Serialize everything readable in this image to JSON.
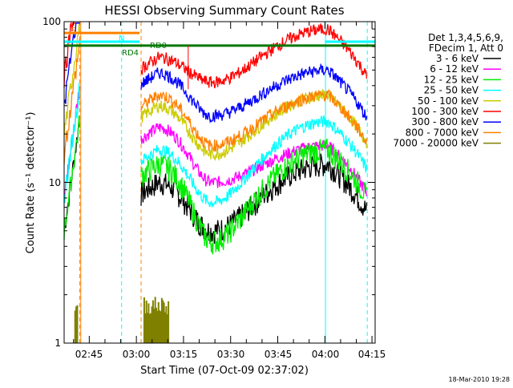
{
  "chart_data": {
    "type": "line",
    "title": "HESSI Observing Summary Count Rates",
    "xlabel": "Start Time (07-Oct-09 02:37:02)",
    "ylabel": "Count Rate (s⁻¹ detector⁻¹)",
    "yscale": "log",
    "ylim": [
      1,
      100
    ],
    "xlim_minutes": [
      0,
      99
    ],
    "x_tick_values_minutes": [
      8,
      23,
      38,
      53,
      68,
      83,
      98
    ],
    "x_tick_labels": [
      "02:45",
      "03:00",
      "03:15",
      "03:30",
      "03:45",
      "04:00",
      "04:15"
    ],
    "y_tick_values": [
      1,
      10,
      100
    ],
    "y_tick_labels": [
      "1",
      "10",
      "100"
    ],
    "legend": {
      "placement": "right",
      "header": [
        "Det 1,3,4,5,6,9,",
        "FDecim 1, Att 0"
      ],
      "entries": [
        {
          "label": "3 - 6 keV",
          "color": "#000000"
        },
        {
          "label": "6 - 12 keV",
          "color": "#ff00ff"
        },
        {
          "label": "12 - 25 keV",
          "color": "#00ee00"
        },
        {
          "label": "25 - 50 keV",
          "color": "#00ffff"
        },
        {
          "label": "50 - 100 keV",
          "color": "#cccc00"
        },
        {
          "label": "100 - 300 keV",
          "color": "#ff0000"
        },
        {
          "label": "300 - 800 keV",
          "color": "#0000ff"
        },
        {
          "label": "800 - 7000 keV",
          "color": "#ff8000"
        },
        {
          "label": "7000 - 20000 keV",
          "color": "#808000"
        }
      ]
    },
    "flag_bars": [
      {
        "name": "S",
        "color": "#ff8000",
        "x_start": 0,
        "x_end": 24,
        "y": 85
      },
      {
        "name": "N",
        "color": "#00ffff",
        "x_start": 0,
        "x_end": 24,
        "y": 75
      },
      {
        "name": "N",
        "color": "#00ffff",
        "x_start": 83,
        "x_end": 99,
        "y": 75
      },
      {
        "name": "RD4",
        "color": "#007700",
        "x_start": 0,
        "x_end": 29,
        "y": 71
      },
      {
        "name": "RD0",
        "color": "#007700",
        "x_start": 29,
        "x_end": 99,
        "y": 71
      }
    ],
    "vertical_markers": [
      {
        "x": 5.3,
        "color": "#ff8000",
        "style": "solid"
      },
      {
        "x": 5.0,
        "color": "#ff8000",
        "style": "dashed"
      },
      {
        "x": 18.3,
        "color": "#00ffff",
        "style": "dashed"
      },
      {
        "x": 24.5,
        "color": "#ff8000",
        "style": "dashed"
      },
      {
        "x": 83.2,
        "color": "#00ffff",
        "style": "solid"
      },
      {
        "x": 96.5,
        "color": "#00ffff",
        "style": "dashed"
      }
    ],
    "series": [
      {
        "name": "3 - 6 keV",
        "color": "#000000",
        "start_value": 5,
        "a": 10,
        "b": 5,
        "c": 13
      },
      {
        "name": "6 - 12 keV",
        "color": "#ff00ff",
        "start_value": 8,
        "a": 22,
        "b": 10,
        "c": 17
      },
      {
        "name": "12 - 25 keV",
        "color": "#00ee00",
        "start_value": 5,
        "a": 13,
        "b": 4.3,
        "c": 16
      },
      {
        "name": "25 - 50 keV",
        "color": "#00ffff",
        "start_value": 8,
        "a": 16,
        "b": 7.5,
        "c": 24
      },
      {
        "name": "50 - 100 keV",
        "color": "#cccc00",
        "start_value": 20,
        "a": 30,
        "b": 15,
        "c": 35
      },
      {
        "name": "100 - 300 keV",
        "color": "#ff0000",
        "start_value": 45,
        "a": 60,
        "b": 42,
        "c": 90
      },
      {
        "name": "300 - 800 keV",
        "color": "#0000ff",
        "start_value": 30,
        "a": 48,
        "b": 26,
        "c": 50
      },
      {
        "name": "800 - 7000 keV",
        "color": "#ff8000",
        "start_value": 15,
        "a": 35,
        "b": 17,
        "c": 35
      },
      {
        "name": "7000 - 20000 keV",
        "color": "#808000",
        "start_value": 1,
        "a": 1.9,
        "b": 1,
        "c": 1
      }
    ],
    "series_time_segments_minutes": {
      "pre_gap": [
        0,
        5
      ],
      "main": [
        24.5,
        96.5
      ],
      "peak_1": 30,
      "min": 47,
      "peak_2": 84
    },
    "footer_date": "18-Mar-2010 19:28"
  }
}
